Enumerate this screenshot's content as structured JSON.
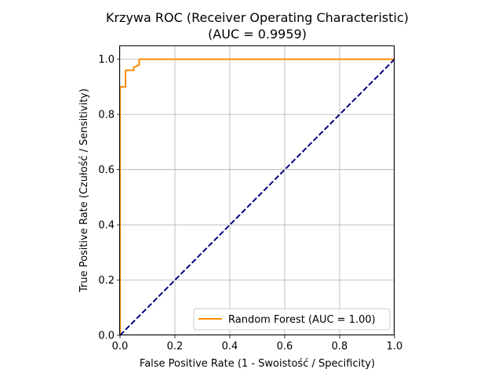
{
  "chart_data": {
    "type": "line",
    "title": [
      "Krzywa ROC (Receiver Operating Characteristic)",
      "(AUC = 0.9959)"
    ],
    "xlabel": "False Positive Rate (1 - Swoistość / Specificity)",
    "ylabel": "True Positive Rate (Czułość / Sensitivity)",
    "xlim": [
      0,
      1
    ],
    "ylim": [
      0,
      1.05
    ],
    "xticks": [
      0.0,
      0.2,
      0.4,
      0.6,
      0.8,
      1.0
    ],
    "yticks": [
      0.0,
      0.2,
      0.4,
      0.6,
      0.8,
      1.0
    ],
    "xtick_labels": [
      "0.0",
      "0.2",
      "0.4",
      "0.6",
      "0.8",
      "1.0"
    ],
    "ytick_labels": [
      "0.0",
      "0.2",
      "0.4",
      "0.6",
      "0.8",
      "1.0"
    ],
    "grid": true,
    "legend_placement": "lower-right",
    "series": [
      {
        "name": "Random Forest (AUC = 1.00)",
        "color": "#ff8c00",
        "style": "solid",
        "x": [
          0.0,
          0.0,
          0.0,
          0.02,
          0.02,
          0.05,
          0.05,
          0.07,
          0.07,
          0.5,
          1.0
        ],
        "y": [
          0.0,
          0.9,
          0.9,
          0.9,
          0.96,
          0.96,
          0.97,
          0.98,
          1.0,
          1.0,
          1.0
        ]
      },
      {
        "name": "",
        "color": "#000080",
        "style": "dashed",
        "x": [
          0.0,
          1.0
        ],
        "y": [
          0.0,
          1.0
        ]
      }
    ]
  }
}
